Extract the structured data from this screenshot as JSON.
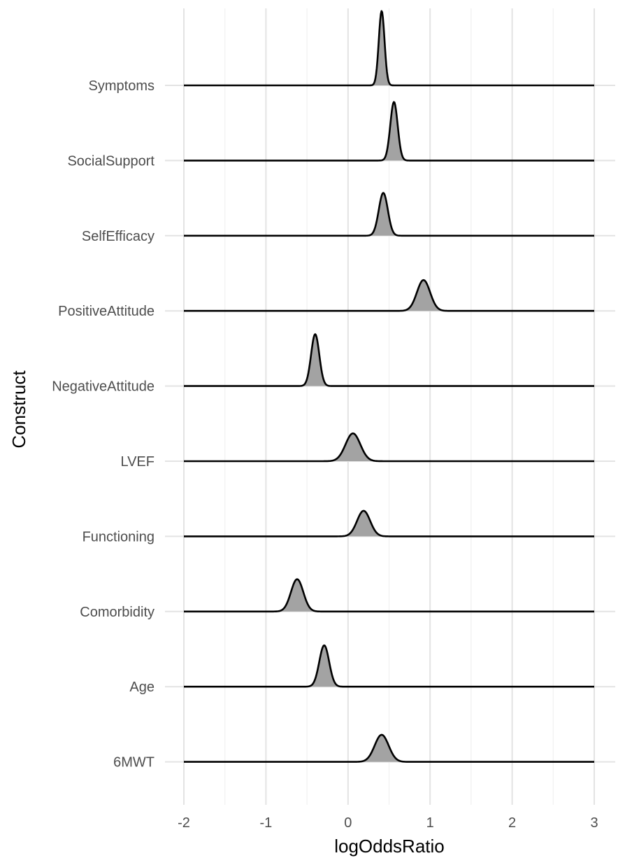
{
  "chart_data": {
    "type": "ridgeline",
    "xlabel": "logOddsRatio",
    "ylabel": "Construct",
    "xlim": [
      -2,
      3
    ],
    "x_ticks": [
      -2,
      -1,
      0,
      1,
      2,
      3
    ],
    "x_tick_labels": [
      "-2",
      "-1",
      "0",
      "1",
      "2",
      "3"
    ],
    "grid": true,
    "fill_color": "#a3a3a3",
    "line_color": "#000000",
    "categories": [
      "Symptoms",
      "SocialSupport",
      "SelfEfficacy",
      "PositiveAttitude",
      "NegativeAttitude",
      "LVEF",
      "Functioning",
      "Comorbidity",
      "Age",
      "6MWT"
    ],
    "series": [
      {
        "name": "Symptoms",
        "mean": 0.41,
        "sd": 0.035,
        "peak_height": 0.99
      },
      {
        "name": "SocialSupport",
        "mean": 0.56,
        "sd": 0.045,
        "peak_height": 0.78
      },
      {
        "name": "SelfEfficacy",
        "mean": 0.43,
        "sd": 0.055,
        "peak_height": 0.57
      },
      {
        "name": "PositiveAttitude",
        "mean": 0.92,
        "sd": 0.08,
        "peak_height": 0.41
      },
      {
        "name": "NegativeAttitude",
        "mean": -0.4,
        "sd": 0.05,
        "peak_height": 0.69
      },
      {
        "name": "LVEF",
        "mean": 0.06,
        "sd": 0.09,
        "peak_height": 0.37
      },
      {
        "name": "Functioning",
        "mean": 0.19,
        "sd": 0.08,
        "peak_height": 0.34
      },
      {
        "name": "Comorbidity",
        "mean": -0.62,
        "sd": 0.075,
        "peak_height": 0.43
      },
      {
        "name": "Age",
        "mean": -0.29,
        "sd": 0.06,
        "peak_height": 0.55
      },
      {
        "name": "6MWT",
        "mean": 0.41,
        "sd": 0.085,
        "peak_height": 0.36
      }
    ]
  }
}
